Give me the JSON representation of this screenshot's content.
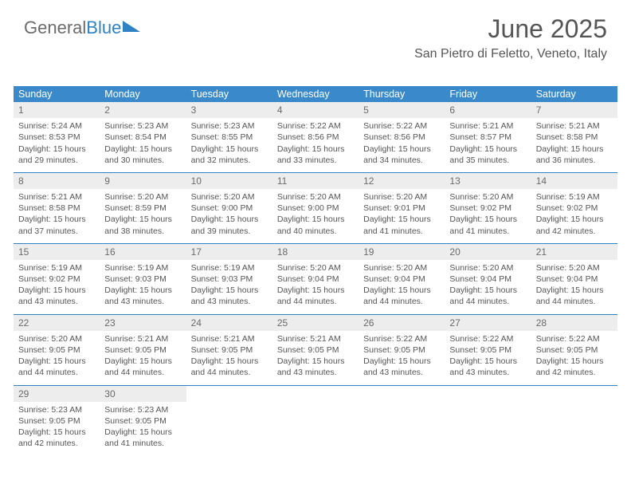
{
  "brand": {
    "part1": "General",
    "part2": "Blue"
  },
  "title": "June 2025",
  "subtitle": "San Pietro di Feletto, Veneto, Italy",
  "styling": {
    "header_bg": "#3a8acb",
    "header_fg": "#ffffff",
    "row_border": "#2f82c4",
    "daynum_bg": "#ededed",
    "text_color": "#555555",
    "title_fontsize": 32,
    "subtitle_fontsize": 16,
    "cell_fontsize": 10.5,
    "page_bg": "#ffffff"
  },
  "weekdays": [
    "Sunday",
    "Monday",
    "Tuesday",
    "Wednesday",
    "Thursday",
    "Friday",
    "Saturday"
  ],
  "days": {
    "d1": {
      "n": "1",
      "sr": "Sunrise: 5:24 AM",
      "ss": "Sunset: 8:53 PM",
      "dl1": "Daylight: 15 hours",
      "dl2": "and 29 minutes."
    },
    "d2": {
      "n": "2",
      "sr": "Sunrise: 5:23 AM",
      "ss": "Sunset: 8:54 PM",
      "dl1": "Daylight: 15 hours",
      "dl2": "and 30 minutes."
    },
    "d3": {
      "n": "3",
      "sr": "Sunrise: 5:23 AM",
      "ss": "Sunset: 8:55 PM",
      "dl1": "Daylight: 15 hours",
      "dl2": "and 32 minutes."
    },
    "d4": {
      "n": "4",
      "sr": "Sunrise: 5:22 AM",
      "ss": "Sunset: 8:56 PM",
      "dl1": "Daylight: 15 hours",
      "dl2": "and 33 minutes."
    },
    "d5": {
      "n": "5",
      "sr": "Sunrise: 5:22 AM",
      "ss": "Sunset: 8:56 PM",
      "dl1": "Daylight: 15 hours",
      "dl2": "and 34 minutes."
    },
    "d6": {
      "n": "6",
      "sr": "Sunrise: 5:21 AM",
      "ss": "Sunset: 8:57 PM",
      "dl1": "Daylight: 15 hours",
      "dl2": "and 35 minutes."
    },
    "d7": {
      "n": "7",
      "sr": "Sunrise: 5:21 AM",
      "ss": "Sunset: 8:58 PM",
      "dl1": "Daylight: 15 hours",
      "dl2": "and 36 minutes."
    },
    "d8": {
      "n": "8",
      "sr": "Sunrise: 5:21 AM",
      "ss": "Sunset: 8:58 PM",
      "dl1": "Daylight: 15 hours",
      "dl2": "and 37 minutes."
    },
    "d9": {
      "n": "9",
      "sr": "Sunrise: 5:20 AM",
      "ss": "Sunset: 8:59 PM",
      "dl1": "Daylight: 15 hours",
      "dl2": "and 38 minutes."
    },
    "d10": {
      "n": "10",
      "sr": "Sunrise: 5:20 AM",
      "ss": "Sunset: 9:00 PM",
      "dl1": "Daylight: 15 hours",
      "dl2": "and 39 minutes."
    },
    "d11": {
      "n": "11",
      "sr": "Sunrise: 5:20 AM",
      "ss": "Sunset: 9:00 PM",
      "dl1": "Daylight: 15 hours",
      "dl2": "and 40 minutes."
    },
    "d12": {
      "n": "12",
      "sr": "Sunrise: 5:20 AM",
      "ss": "Sunset: 9:01 PM",
      "dl1": "Daylight: 15 hours",
      "dl2": "and 41 minutes."
    },
    "d13": {
      "n": "13",
      "sr": "Sunrise: 5:20 AM",
      "ss": "Sunset: 9:02 PM",
      "dl1": "Daylight: 15 hours",
      "dl2": "and 41 minutes."
    },
    "d14": {
      "n": "14",
      "sr": "Sunrise: 5:19 AM",
      "ss": "Sunset: 9:02 PM",
      "dl1": "Daylight: 15 hours",
      "dl2": "and 42 minutes."
    },
    "d15": {
      "n": "15",
      "sr": "Sunrise: 5:19 AM",
      "ss": "Sunset: 9:02 PM",
      "dl1": "Daylight: 15 hours",
      "dl2": "and 43 minutes."
    },
    "d16": {
      "n": "16",
      "sr": "Sunrise: 5:19 AM",
      "ss": "Sunset: 9:03 PM",
      "dl1": "Daylight: 15 hours",
      "dl2": "and 43 minutes."
    },
    "d17": {
      "n": "17",
      "sr": "Sunrise: 5:19 AM",
      "ss": "Sunset: 9:03 PM",
      "dl1": "Daylight: 15 hours",
      "dl2": "and 43 minutes."
    },
    "d18": {
      "n": "18",
      "sr": "Sunrise: 5:20 AM",
      "ss": "Sunset: 9:04 PM",
      "dl1": "Daylight: 15 hours",
      "dl2": "and 44 minutes."
    },
    "d19": {
      "n": "19",
      "sr": "Sunrise: 5:20 AM",
      "ss": "Sunset: 9:04 PM",
      "dl1": "Daylight: 15 hours",
      "dl2": "and 44 minutes."
    },
    "d20": {
      "n": "20",
      "sr": "Sunrise: 5:20 AM",
      "ss": "Sunset: 9:04 PM",
      "dl1": "Daylight: 15 hours",
      "dl2": "and 44 minutes."
    },
    "d21": {
      "n": "21",
      "sr": "Sunrise: 5:20 AM",
      "ss": "Sunset: 9:04 PM",
      "dl1": "Daylight: 15 hours",
      "dl2": "and 44 minutes."
    },
    "d22": {
      "n": "22",
      "sr": "Sunrise: 5:20 AM",
      "ss": "Sunset: 9:05 PM",
      "dl1": "Daylight: 15 hours",
      "dl2": "and 44 minutes."
    },
    "d23": {
      "n": "23",
      "sr": "Sunrise: 5:21 AM",
      "ss": "Sunset: 9:05 PM",
      "dl1": "Daylight: 15 hours",
      "dl2": "and 44 minutes."
    },
    "d24": {
      "n": "24",
      "sr": "Sunrise: 5:21 AM",
      "ss": "Sunset: 9:05 PM",
      "dl1": "Daylight: 15 hours",
      "dl2": "and 44 minutes."
    },
    "d25": {
      "n": "25",
      "sr": "Sunrise: 5:21 AM",
      "ss": "Sunset: 9:05 PM",
      "dl1": "Daylight: 15 hours",
      "dl2": "and 43 minutes."
    },
    "d26": {
      "n": "26",
      "sr": "Sunrise: 5:22 AM",
      "ss": "Sunset: 9:05 PM",
      "dl1": "Daylight: 15 hours",
      "dl2": "and 43 minutes."
    },
    "d27": {
      "n": "27",
      "sr": "Sunrise: 5:22 AM",
      "ss": "Sunset: 9:05 PM",
      "dl1": "Daylight: 15 hours",
      "dl2": "and 43 minutes."
    },
    "d28": {
      "n": "28",
      "sr": "Sunrise: 5:22 AM",
      "ss": "Sunset: 9:05 PM",
      "dl1": "Daylight: 15 hours",
      "dl2": "and 42 minutes."
    },
    "d29": {
      "n": "29",
      "sr": "Sunrise: 5:23 AM",
      "ss": "Sunset: 9:05 PM",
      "dl1": "Daylight: 15 hours",
      "dl2": "and 42 minutes."
    },
    "d30": {
      "n": "30",
      "sr": "Sunrise: 5:23 AM",
      "ss": "Sunset: 9:05 PM",
      "dl1": "Daylight: 15 hours",
      "dl2": "and 41 minutes."
    }
  }
}
